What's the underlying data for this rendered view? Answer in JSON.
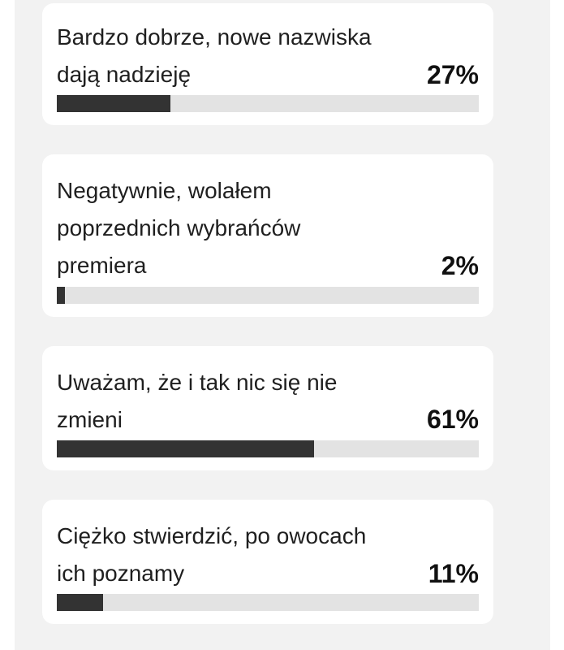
{
  "poll": {
    "options": [
      {
        "text": "Bardzo dobrze, nowe nazwiska dają nadzieję",
        "percent_label": "27%",
        "percent": 27
      },
      {
        "text": "Negatywnie, wolałem poprzednich wybrańców premiera",
        "percent_label": "2%",
        "percent": 2
      },
      {
        "text": "Uważam, że i tak nic się nie zmieni",
        "percent_label": "61%",
        "percent": 61
      },
      {
        "text": "Ciężko stwierdzić, po owocach ich poznamy",
        "percent_label": "11%",
        "percent": 11
      }
    ],
    "bar_color": "#333333",
    "track_color": "#e3e3e3"
  }
}
